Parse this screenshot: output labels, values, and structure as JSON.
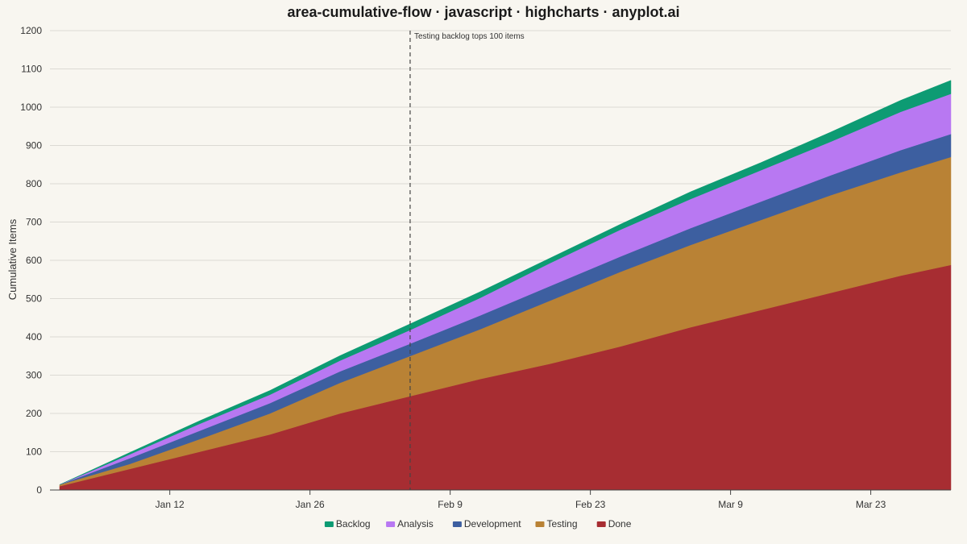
{
  "chart_data": {
    "type": "area",
    "stacked": true,
    "title": "area-cumulative-flow · javascript · highcharts · anyplot.ai",
    "xlabel": "",
    "ylabel": "Cumulative Items",
    "ylim": [
      0,
      1200
    ],
    "yticks": [
      0,
      100,
      200,
      300,
      400,
      500,
      600,
      700,
      800,
      900,
      1000,
      1100,
      1200
    ],
    "xlim": [
      "2025-01-01",
      "2025-03-31"
    ],
    "xticks": [
      {
        "date": "2025-01-12",
        "label": "Jan 12"
      },
      {
        "date": "2025-01-26",
        "label": "Jan 26"
      },
      {
        "date": "2025-02-09",
        "label": "Feb 9"
      },
      {
        "date": "2025-02-23",
        "label": "Feb 23"
      },
      {
        "date": "2025-03-09",
        "label": "Mar 9"
      },
      {
        "date": "2025-03-23",
        "label": "Mar 23"
      }
    ],
    "grid": true,
    "legend_position": "bottom-center",
    "annotation": {
      "date": "2025-02-05",
      "text": "Testing backlog tops 100 items"
    },
    "x": [
      "2025-01-01",
      "2025-01-08",
      "2025-01-15",
      "2025-01-22",
      "2025-01-29",
      "2025-02-05",
      "2025-02-12",
      "2025-02-19",
      "2025-02-26",
      "2025-03-05",
      "2025-03-12",
      "2025-03-19",
      "2025-03-26",
      "2025-03-31"
    ],
    "series": [
      {
        "name": "Done",
        "color": "#a72d32",
        "values": [
          10,
          55,
          100,
          145,
          200,
          245,
          290,
          330,
          375,
          425,
          470,
          515,
          560,
          588
        ]
      },
      {
        "name": "Testing",
        "color": "#b98235",
        "values": [
          4,
          13,
          33,
          55,
          80,
          105,
          130,
          165,
          195,
          215,
          235,
          255,
          270,
          282
        ]
      },
      {
        "name": "Development",
        "color": "#3d5fa0",
        "values": [
          0,
          15,
          22,
          27,
          30,
          32,
          36,
          38,
          40,
          44,
          48,
          52,
          58,
          60
        ]
      },
      {
        "name": "Analysis",
        "color": "#b878f2",
        "values": [
          0,
          10,
          18,
          22,
          28,
          36,
          46,
          60,
          70,
          76,
          82,
          88,
          100,
          105
        ]
      },
      {
        "name": "Backlog",
        "color": "#0d9b73",
        "values": [
          0,
          5,
          8,
          11,
          13,
          16,
          16,
          13,
          14,
          19,
          20,
          25,
          30,
          35
        ]
      }
    ],
    "legend_order": [
      "Backlog",
      "Analysis",
      "Development",
      "Testing",
      "Done"
    ]
  }
}
